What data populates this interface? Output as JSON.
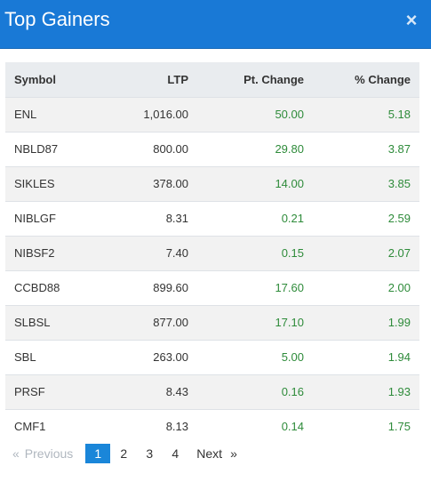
{
  "header": {
    "title": "Top Gainers",
    "close_icon": "×"
  },
  "table": {
    "columns": [
      "Symbol",
      "LTP",
      "Pt. Change",
      "% Change"
    ],
    "rows": [
      {
        "symbol": "ENL",
        "ltp": "1,016.00",
        "pt": "50.00",
        "pct": "5.18"
      },
      {
        "symbol": "NBLD87",
        "ltp": "800.00",
        "pt": "29.80",
        "pct": "3.87"
      },
      {
        "symbol": "SIKLES",
        "ltp": "378.00",
        "pt": "14.00",
        "pct": "3.85"
      },
      {
        "symbol": "NIBLGF",
        "ltp": "8.31",
        "pt": "0.21",
        "pct": "2.59"
      },
      {
        "symbol": "NIBSF2",
        "ltp": "7.40",
        "pt": "0.15",
        "pct": "2.07"
      },
      {
        "symbol": "CCBD88",
        "ltp": "899.60",
        "pt": "17.60",
        "pct": "2.00"
      },
      {
        "symbol": "SLBSL",
        "ltp": "877.00",
        "pt": "17.10",
        "pct": "1.99"
      },
      {
        "symbol": "SBL",
        "ltp": "263.00",
        "pt": "5.00",
        "pct": "1.94"
      },
      {
        "symbol": "PRSF",
        "ltp": "8.43",
        "pt": "0.16",
        "pct": "1.93"
      },
      {
        "symbol": "CMF1",
        "ltp": "8.13",
        "pt": "0.14",
        "pct": "1.75"
      }
    ]
  },
  "pagination": {
    "prev_arrow": "«",
    "prev_label": "Previous",
    "pages": [
      "1",
      "2",
      "3",
      "4"
    ],
    "current_page": "1",
    "next_label": "Next",
    "next_arrow": "»"
  },
  "colors": {
    "header_bg": "#1979d6",
    "positive": "#2e8b3a",
    "active_page": "#1a86d9"
  }
}
